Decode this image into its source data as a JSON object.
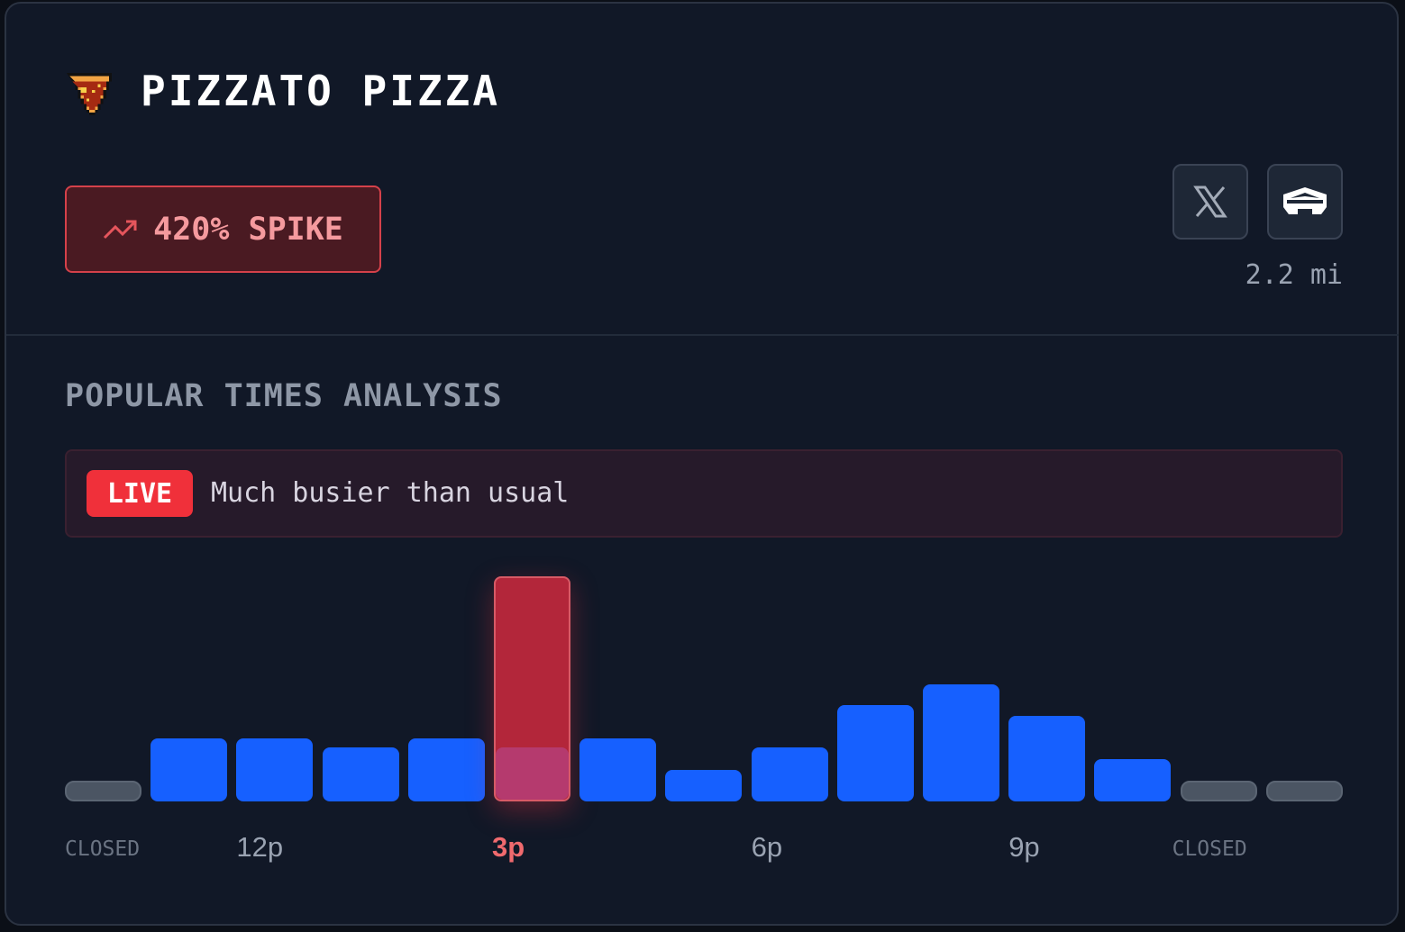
{
  "header": {
    "title": "PIZZATO PIZZA",
    "logo_icon": "pizza-slice-icon",
    "spike_label": "420% SPIKE",
    "spike_icon": "trending-up-icon",
    "distance": "2.2 mi",
    "buttons": [
      {
        "icon": "x-logo-icon",
        "label": "X"
      },
      {
        "icon": "pentagon-building-icon",
        "label": "Pentagon"
      }
    ]
  },
  "section_title": "POPULAR TIMES ANALYSIS",
  "live": {
    "badge": "LIVE",
    "text": "Much busier than usual"
  },
  "colors": {
    "usual": "#1660ff",
    "live": "#b3263a",
    "closed": "#4b5563",
    "accent": "#f0303a"
  },
  "chart_data": {
    "type": "bar",
    "unit": "percent of peak",
    "ylim": [
      0,
      100
    ],
    "current_index": 5,
    "bars": [
      {
        "status": "closed",
        "usual": 0
      },
      {
        "status": "open",
        "usual": 28
      },
      {
        "status": "open",
        "usual": 28
      },
      {
        "status": "open",
        "usual": 24
      },
      {
        "status": "open",
        "usual": 28
      },
      {
        "status": "open",
        "usual": 24,
        "live": 100
      },
      {
        "status": "open",
        "usual": 28
      },
      {
        "status": "open",
        "usual": 14
      },
      {
        "status": "open",
        "usual": 24
      },
      {
        "status": "open",
        "usual": 43
      },
      {
        "status": "open",
        "usual": 52
      },
      {
        "status": "open",
        "usual": 38
      },
      {
        "status": "open",
        "usual": 19
      },
      {
        "status": "closed",
        "usual": 0
      },
      {
        "status": "closed",
        "usual": 0
      }
    ],
    "x_labels": [
      {
        "index": 0,
        "text": "CLOSED",
        "kind": "closed"
      },
      {
        "index": 2,
        "text": "12p",
        "kind": "time"
      },
      {
        "index": 5,
        "text": "3p",
        "kind": "current"
      },
      {
        "index": 8,
        "text": "6p",
        "kind": "time"
      },
      {
        "index": 11,
        "text": "9p",
        "kind": "time"
      },
      {
        "index": 13,
        "text": "CLOSED",
        "kind": "closed"
      }
    ]
  }
}
